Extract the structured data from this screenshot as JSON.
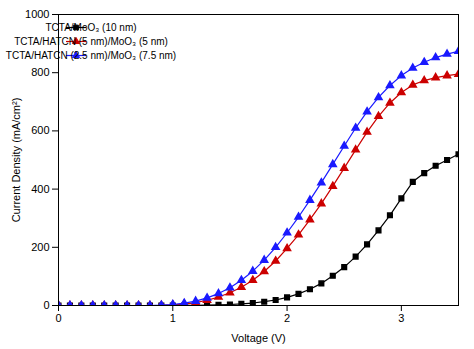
{
  "chart_data": {
    "type": "line",
    "xlabel": "Voltage (V)",
    "ylabel": "Current Density (mA/cm²)",
    "xlim": [
      0,
      3.5
    ],
    "ylim": [
      0,
      1000
    ],
    "xticks": [
      0,
      1,
      2,
      3
    ],
    "yticks": [
      0,
      200,
      400,
      600,
      800,
      1000
    ],
    "grid": false,
    "legend": "upper left",
    "x": [
      0.0,
      0.1,
      0.2,
      0.3,
      0.4,
      0.5,
      0.6,
      0.7,
      0.8,
      0.9,
      1.0,
      1.1,
      1.2,
      1.3,
      1.4,
      1.5,
      1.6,
      1.7,
      1.8,
      1.9,
      2.0,
      2.1,
      2.2,
      2.3,
      2.4,
      2.5,
      2.6,
      2.7,
      2.8,
      2.9,
      3.0,
      3.1,
      3.2,
      3.3,
      3.4,
      3.5
    ],
    "series": [
      {
        "name": "TCTA/MoO₃ (10 nm)",
        "color": "#000000",
        "marker": "square",
        "values": [
          0.0,
          0.0,
          0.0,
          0.0,
          0.0,
          0.0,
          0.0,
          0.0,
          0.0,
          0.0,
          0.0,
          0.2,
          0.5,
          1.0,
          2.0,
          3.5,
          5.5,
          8.5,
          13,
          19,
          28,
          40,
          56,
          76,
          102,
          132,
          168,
          210,
          258,
          310,
          368,
          425,
          455,
          480,
          500,
          520
        ]
      },
      {
        "name": "TCTA/HATCN (5 nm)/MoO₃ (5 nm)",
        "color": "#cc0000",
        "marker": "triangle",
        "values": [
          0.0,
          0.0,
          0.0,
          0.0,
          0.0,
          0.0,
          0.0,
          0.0,
          0.0,
          0.5,
          2.0,
          5.0,
          10,
          18,
          29,
          44,
          63,
          87,
          117,
          153,
          196,
          243,
          295,
          350,
          410,
          472,
          535,
          596,
          650,
          696,
          732,
          758,
          773,
          783,
          790,
          795
        ]
      },
      {
        "name": "TCTA/HATCN (2.5 nm)/MoO₃ (7.5 nm)",
        "color": "#1a1aff",
        "marker": "triangle",
        "values": [
          0.0,
          0.0,
          0.0,
          0.0,
          0.0,
          0.0,
          0.0,
          0.0,
          0.0,
          1.0,
          3.5,
          8.0,
          15,
          26,
          41,
          61,
          87,
          118,
          156,
          200,
          250,
          304,
          362,
          422,
          485,
          548,
          610,
          666,
          715,
          756,
          790,
          816,
          836,
          852,
          864,
          874
        ]
      }
    ]
  }
}
